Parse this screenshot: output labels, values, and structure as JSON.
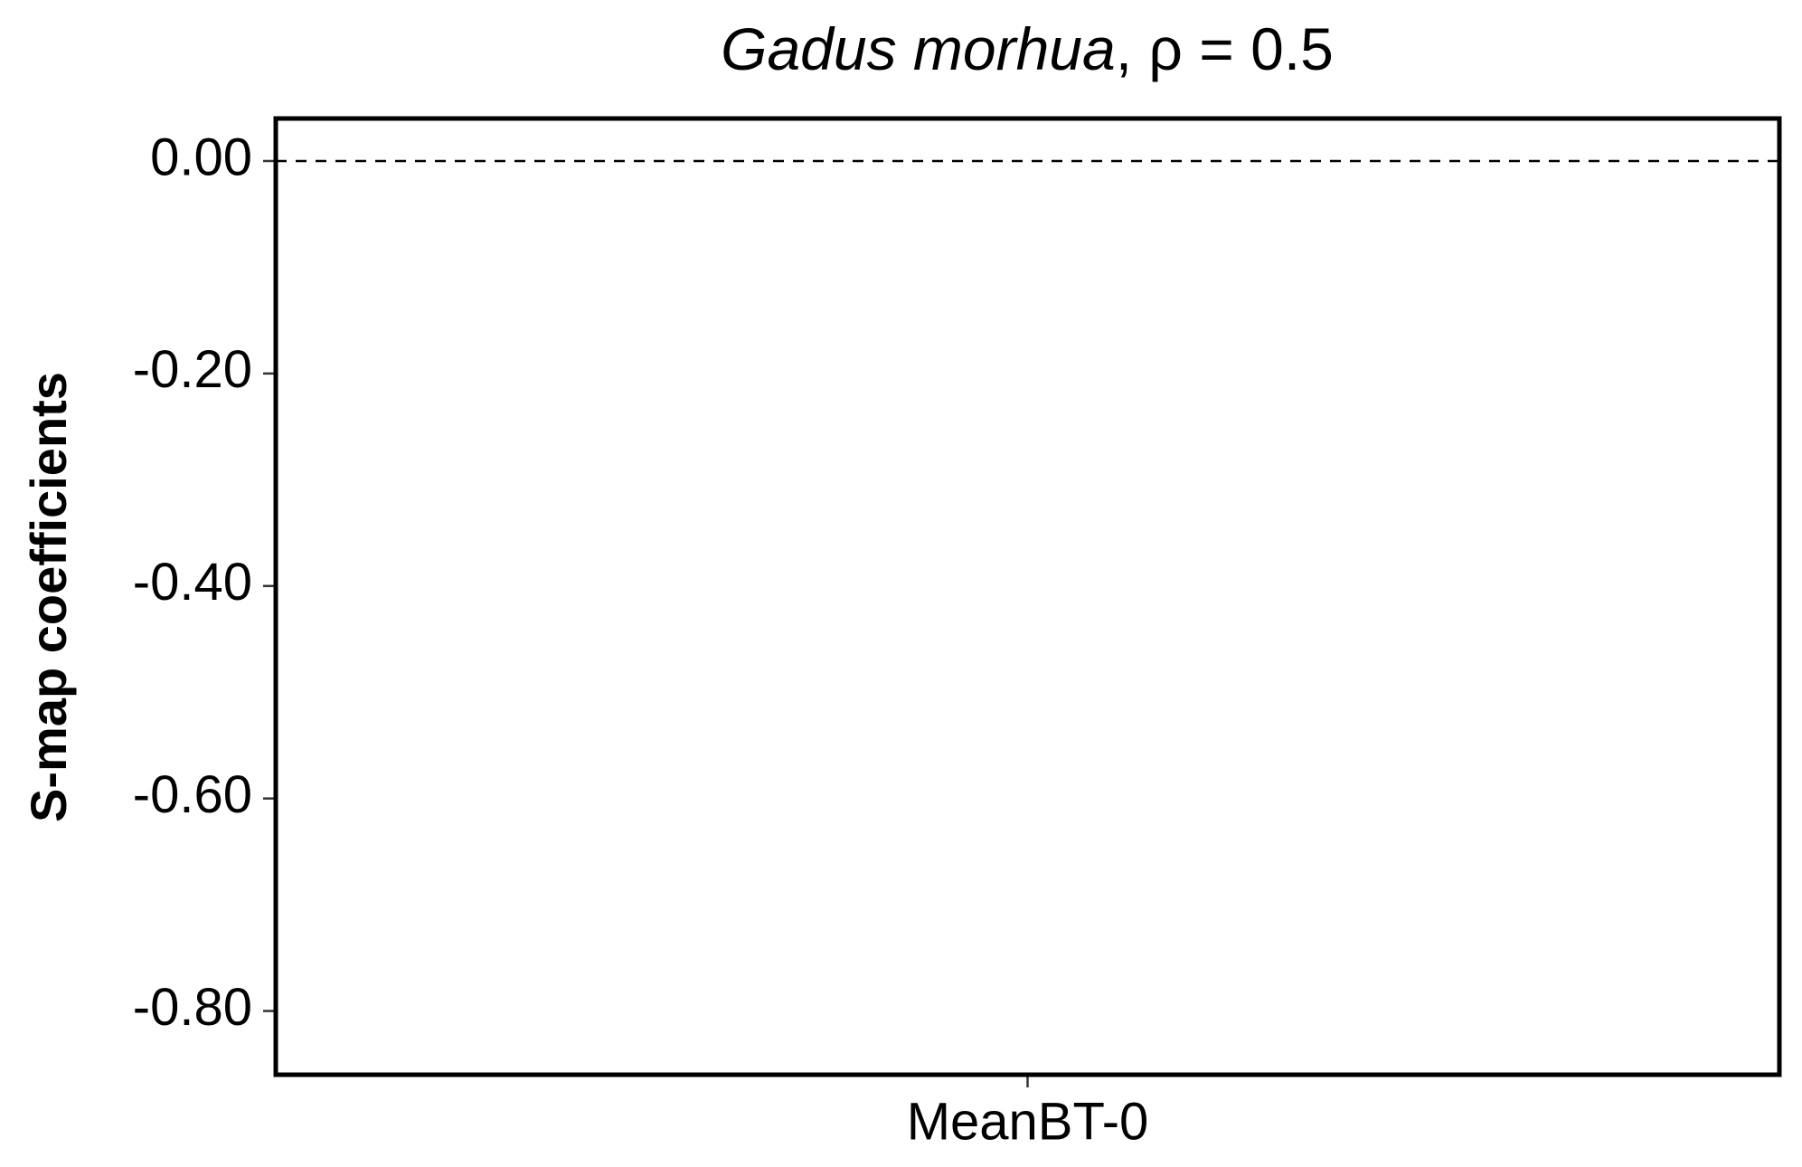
{
  "chart_data": {
    "type": "box",
    "title_italic": "Gadus morhua",
    "title_rest": ", ρ = 0.5",
    "ylabel": "S-map coefficients",
    "categories": [
      "MeanBT-0"
    ],
    "ylim": [
      -0.86,
      0.04
    ],
    "yticks": [
      {
        "value": 0,
        "label": "0.00"
      },
      {
        "value": -0.2,
        "label": "-0.20"
      },
      {
        "value": -0.4,
        "label": "-0.40"
      },
      {
        "value": -0.6,
        "label": "-0.60"
      },
      {
        "value": -0.8,
        "label": "-0.80"
      }
    ],
    "hline": 0,
    "grid": false
  }
}
